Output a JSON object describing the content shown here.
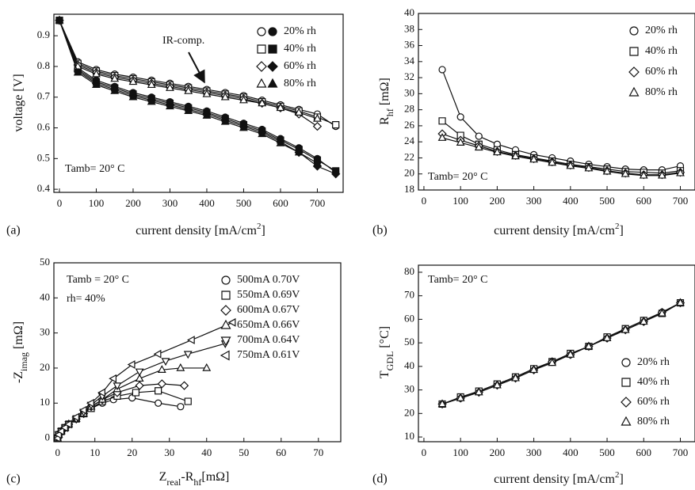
{
  "chart_data": [
    {
      "type": "line",
      "label": "(a)",
      "x_label": [
        {
          "text": "current density [mA/cm"
        },
        {
          "text": "2",
          "shift": "super"
        },
        {
          "text": "]"
        }
      ],
      "y_label": [
        {
          "text": "voltage [V]"
        }
      ],
      "annotations": [
        "IR-comp.",
        "Tamb= 20° C"
      ],
      "legend": "upper right",
      "values_marker": "filled",
      "xlim": [
        -15,
        770
      ],
      "ylim": [
        0.39,
        0.97
      ],
      "xticks": [
        0,
        100,
        200,
        300,
        400,
        500,
        600,
        700
      ],
      "yticks": [
        0.4,
        0.5,
        0.6,
        0.7,
        0.8,
        0.9
      ],
      "x": [
        0,
        50,
        100,
        150,
        200,
        250,
        300,
        350,
        400,
        450,
        500,
        550,
        600,
        650,
        700,
        750
      ],
      "series": [
        {
          "name": "20% rh",
          "marker": "circle",
          "color": "#111",
          "ir_comp_values": [
            0.95,
            0.815,
            0.79,
            0.775,
            0.765,
            0.755,
            0.745,
            0.735,
            0.725,
            0.715,
            0.705,
            0.69,
            0.675,
            0.66,
            0.645,
            0.605
          ],
          "values": [
            0.95,
            0.795,
            0.755,
            0.735,
            0.715,
            0.7,
            0.685,
            0.67,
            0.655,
            0.635,
            0.615,
            0.595,
            0.565,
            0.535,
            0.5,
            0.455
          ]
        },
        {
          "name": "40% rh",
          "marker": "square",
          "color": "#111",
          "ir_comp_values": [
            0.95,
            0.81,
            0.785,
            0.77,
            0.76,
            0.75,
            0.74,
            0.73,
            0.72,
            0.71,
            0.7,
            0.685,
            0.67,
            0.655,
            0.635,
            0.61
          ],
          "values": [
            0.95,
            0.79,
            0.75,
            0.73,
            0.71,
            0.695,
            0.68,
            0.665,
            0.65,
            0.63,
            0.61,
            0.59,
            0.56,
            0.53,
            0.495,
            0.46
          ]
        },
        {
          "name": "60% rh",
          "marker": "diamond",
          "color": "#111",
          "ir_comp_values": [
            0.95,
            0.805,
            0.78,
            0.765,
            0.755,
            0.745,
            0.735,
            0.725,
            0.715,
            0.705,
            0.695,
            0.68,
            0.665,
            0.645,
            0.605,
            null
          ],
          "values": [
            0.95,
            0.785,
            0.745,
            0.725,
            0.705,
            0.69,
            0.675,
            0.66,
            0.645,
            0.625,
            0.605,
            0.585,
            0.555,
            0.52,
            0.475,
            0.45
          ]
        },
        {
          "name": "80% rh",
          "marker": "triangle-up",
          "color": "#111",
          "ir_comp_values": [
            0.95,
            0.8,
            0.775,
            0.76,
            0.75,
            0.74,
            0.73,
            0.72,
            0.71,
            0.7,
            0.69,
            0.68,
            0.665,
            0.65,
            0.63,
            null
          ],
          "values": [
            0.95,
            0.78,
            0.74,
            0.72,
            0.7,
            0.685,
            0.67,
            0.655,
            0.64,
            0.62,
            0.6,
            0.58,
            0.55,
            0.52,
            0.485,
            null
          ]
        }
      ]
    },
    {
      "type": "line",
      "label": "(b)",
      "x_label": [
        {
          "text": "current density [mA/cm"
        },
        {
          "text": "2",
          "shift": "super"
        },
        {
          "text": "]"
        }
      ],
      "y_label": [
        {
          "text": "R"
        },
        {
          "text": "hf",
          "shift": "sub"
        },
        {
          "text": " [mΩ]"
        }
      ],
      "annotations": [
        "Tamb= 20° C"
      ],
      "legend": "upper right",
      "values_marker": "open",
      "xlim": [
        -15,
        740
      ],
      "ylim": [
        18,
        40
      ],
      "xticks": [
        0,
        100,
        200,
        300,
        400,
        500,
        600,
        700
      ],
      "yticks": [
        18,
        20,
        22,
        24,
        26,
        28,
        30,
        32,
        34,
        36,
        38,
        40
      ],
      "x": [
        50,
        100,
        150,
        200,
        250,
        300,
        350,
        400,
        450,
        500,
        550,
        600,
        650,
        700
      ],
      "series": [
        {
          "name": "20% rh",
          "marker": "circle",
          "color": "#111",
          "values": [
            33,
            27.1,
            24.7,
            23.7,
            23,
            22.4,
            22,
            21.6,
            21.2,
            20.9,
            20.6,
            20.5,
            20.5,
            21
          ]
        },
        {
          "name": "40% rh",
          "marker": "square",
          "color": "#111",
          "values": [
            26.6,
            24.8,
            23.7,
            23,
            22.4,
            22,
            21.6,
            21.2,
            20.9,
            20.6,
            20.3,
            20.2,
            20.1,
            20.4
          ]
        },
        {
          "name": "60% rh",
          "marker": "diamond",
          "color": "#111",
          "values": [
            25,
            24.2,
            23.5,
            22.8,
            22.3,
            21.9,
            21.5,
            21.1,
            20.8,
            20.4,
            20.1,
            19.9,
            19.9,
            20.2
          ]
        },
        {
          "name": "80% rh",
          "marker": "triangle-up",
          "color": "#111",
          "values": [
            24.5,
            23.9,
            23.3,
            22.7,
            22.2,
            21.8,
            21.4,
            21,
            20.7,
            20.3,
            20,
            19.8,
            19.8,
            20.1
          ]
        }
      ]
    },
    {
      "type": "scatter",
      "label": "(c)",
      "x_label": [
        {
          "text": "Z"
        },
        {
          "text": "real",
          "shift": "sub"
        },
        {
          "text": "-R"
        },
        {
          "text": "hf",
          "shift": "sub"
        },
        {
          "text": "[mΩ]"
        }
      ],
      "y_label": [
        {
          "text": "-Z"
        },
        {
          "text": "imag",
          "shift": "sub"
        },
        {
          "text": " [mΩ]"
        }
      ],
      "annotations": [
        "Tamb = 20° C",
        "rh= 40%"
      ],
      "legend": "upper right",
      "values_marker": "open",
      "xlim": [
        -1,
        76
      ],
      "ylim": [
        -1,
        50
      ],
      "xticks": [
        0,
        10,
        20,
        30,
        40,
        50,
        60,
        70
      ],
      "yticks": [
        0,
        10,
        20,
        30,
        40,
        50
      ],
      "series": [
        {
          "name": "500mA 0.70V",
          "marker": "circle",
          "color": "#111",
          "x": [
            0,
            0.3,
            1,
            2,
            3,
            5,
            7,
            9,
            12,
            15,
            20,
            27,
            33
          ],
          "y": [
            0,
            1,
            2,
            3,
            4,
            5.5,
            7,
            8.5,
            10,
            11,
            11.5,
            10,
            9
          ]
        },
        {
          "name": "550mA 0.69V",
          "marker": "square",
          "color": "#111",
          "x": [
            0,
            0.3,
            1,
            2,
            3,
            5,
            7,
            9,
            12,
            16,
            21,
            27,
            35
          ],
          "y": [
            0,
            1,
            2,
            3,
            4,
            5.5,
            7,
            8.5,
            10.5,
            12,
            13,
            13.5,
            10.5
          ]
        },
        {
          "name": "600mA 0.67V",
          "marker": "diamond",
          "color": "#111",
          "x": [
            0,
            0.3,
            1,
            2,
            3,
            5,
            7,
            9,
            12,
            16,
            22,
            28,
            34
          ],
          "y": [
            0,
            1,
            2,
            3,
            4,
            5.5,
            7,
            9,
            11,
            13,
            15,
            15.5,
            15
          ]
        },
        {
          "name": "650mA 0.66V",
          "marker": "triangle-up",
          "color": "#111",
          "x": [
            0,
            0.3,
            1,
            2,
            3,
            5,
            7,
            9,
            12,
            16,
            22,
            28,
            33,
            40
          ],
          "y": [
            0,
            1,
            2,
            3,
            4,
            5.5,
            7,
            9,
            11,
            14,
            17,
            19.5,
            20,
            20
          ]
        },
        {
          "name": "700mA 0.64V",
          "marker": "triangle-down",
          "color": "#111",
          "x": [
            0,
            0.3,
            1,
            2,
            3,
            5,
            7,
            9,
            12,
            16,
            22,
            29,
            35,
            45
          ],
          "y": [
            0,
            1,
            2,
            3,
            4,
            5.5,
            7.5,
            9.5,
            12,
            15,
            19,
            22,
            24,
            27
          ]
        },
        {
          "name": "750mA 0.61V",
          "marker": "triangle-left",
          "color": "#111",
          "x": [
            0,
            0.3,
            1,
            2,
            3,
            5,
            7,
            9,
            12,
            15,
            20,
            27,
            36,
            47
          ],
          "y": [
            0,
            1,
            2,
            3,
            4,
            6,
            8,
            10,
            13,
            17,
            21,
            24,
            28,
            33
          ]
        }
      ]
    },
    {
      "type": "line",
      "label": "(d)",
      "x_label": [
        {
          "text": "current density [mA/cm"
        },
        {
          "text": "2",
          "shift": "super"
        },
        {
          "text": "]"
        }
      ],
      "y_label": [
        {
          "text": "T"
        },
        {
          "text": "GDL",
          "shift": "sub"
        },
        {
          "text": " [°C]"
        }
      ],
      "annotations": [
        "Tamb= 20° C"
      ],
      "legend": "lower right",
      "values_marker": "open",
      "xlim": [
        -15,
        740
      ],
      "ylim": [
        8,
        83
      ],
      "xticks": [
        0,
        100,
        200,
        300,
        400,
        500,
        600,
        700
      ],
      "yticks": [
        10,
        20,
        30,
        40,
        50,
        60,
        70,
        80
      ],
      "x": [
        50,
        100,
        150,
        200,
        250,
        300,
        350,
        400,
        450,
        500,
        550,
        600,
        650,
        700
      ],
      "series": [
        {
          "name": "20% rh",
          "marker": "circle",
          "color": "#111",
          "values": [
            24,
            26.5,
            29.5,
            32.5,
            35.5,
            39,
            42,
            45,
            48.5,
            52,
            56,
            59.5,
            63,
            67
          ]
        },
        {
          "name": "40% rh",
          "marker": "square",
          "color": "#111",
          "values": [
            24,
            27,
            29.5,
            32.5,
            35.5,
            39,
            42,
            45.5,
            48.5,
            52.5,
            56,
            59.5,
            62.5,
            67
          ]
        },
        {
          "name": "60% rh",
          "marker": "diamond",
          "color": "#111",
          "values": [
            24,
            26.5,
            29,
            32,
            35,
            38.5,
            42,
            45,
            48.5,
            52,
            55.5,
            59,
            63,
            67
          ]
        },
        {
          "name": "80% rh",
          "marker": "triangle-up",
          "color": "#111",
          "values": [
            24,
            26.5,
            29,
            32,
            35,
            38.5,
            41.5,
            45,
            48.5,
            52,
            55.5,
            59,
            62.5,
            67
          ]
        }
      ]
    }
  ]
}
